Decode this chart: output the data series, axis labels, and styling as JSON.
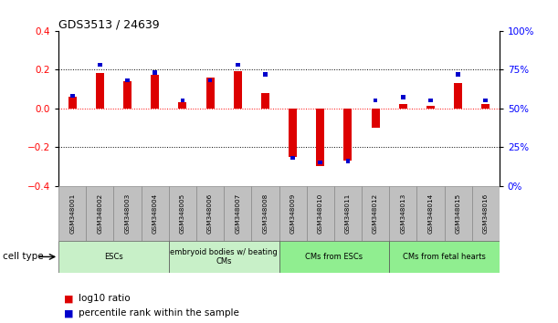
{
  "title": "GDS3513 / 24639",
  "samples": [
    "GSM348001",
    "GSM348002",
    "GSM348003",
    "GSM348004",
    "GSM348005",
    "GSM348006",
    "GSM348007",
    "GSM348008",
    "GSM348009",
    "GSM348010",
    "GSM348011",
    "GSM348012",
    "GSM348013",
    "GSM348014",
    "GSM348015",
    "GSM348016"
  ],
  "log10_ratio": [
    0.06,
    0.18,
    0.14,
    0.17,
    0.03,
    0.16,
    0.19,
    0.08,
    -0.25,
    -0.3,
    -0.27,
    -0.1,
    0.02,
    0.01,
    0.13,
    0.02
  ],
  "percentile_rank": [
    58,
    78,
    68,
    73,
    55,
    68,
    78,
    72,
    18,
    15,
    16,
    55,
    57,
    55,
    72,
    55
  ],
  "bar_color_red": "#DD0000",
  "bar_color_blue": "#0000CC",
  "zero_line_color": "#FF0000",
  "ylim_left": [
    -0.4,
    0.4
  ],
  "ylim_right": [
    0,
    100
  ],
  "yticks_left": [
    -0.4,
    -0.2,
    0.0,
    0.2,
    0.4
  ],
  "yticks_right": [
    0,
    25,
    50,
    75,
    100
  ],
  "ytick_labels_right": [
    "0%",
    "25%",
    "50%",
    "75%",
    "100%"
  ],
  "group_boundaries": [
    {
      "start": 0,
      "end": 3,
      "label": "ESCs",
      "color": "#C8F0C8"
    },
    {
      "start": 4,
      "end": 7,
      "label": "embryoid bodies w/ beating\nCMs",
      "color": "#C8F0C8"
    },
    {
      "start": 8,
      "end": 11,
      "label": "CMs from ESCs",
      "color": "#90EE90"
    },
    {
      "start": 12,
      "end": 15,
      "label": "CMs from fetal hearts",
      "color": "#90EE90"
    }
  ],
  "cell_type_label": "cell type",
  "legend_red_label": "log10 ratio",
  "legend_blue_label": "percentile rank within the sample",
  "bar_width": 0.3,
  "blue_bar_width": 0.15,
  "blue_bar_height": 0.022,
  "sample_box_color": "#C0C0C0",
  "bg_color": "#FFFFFF"
}
